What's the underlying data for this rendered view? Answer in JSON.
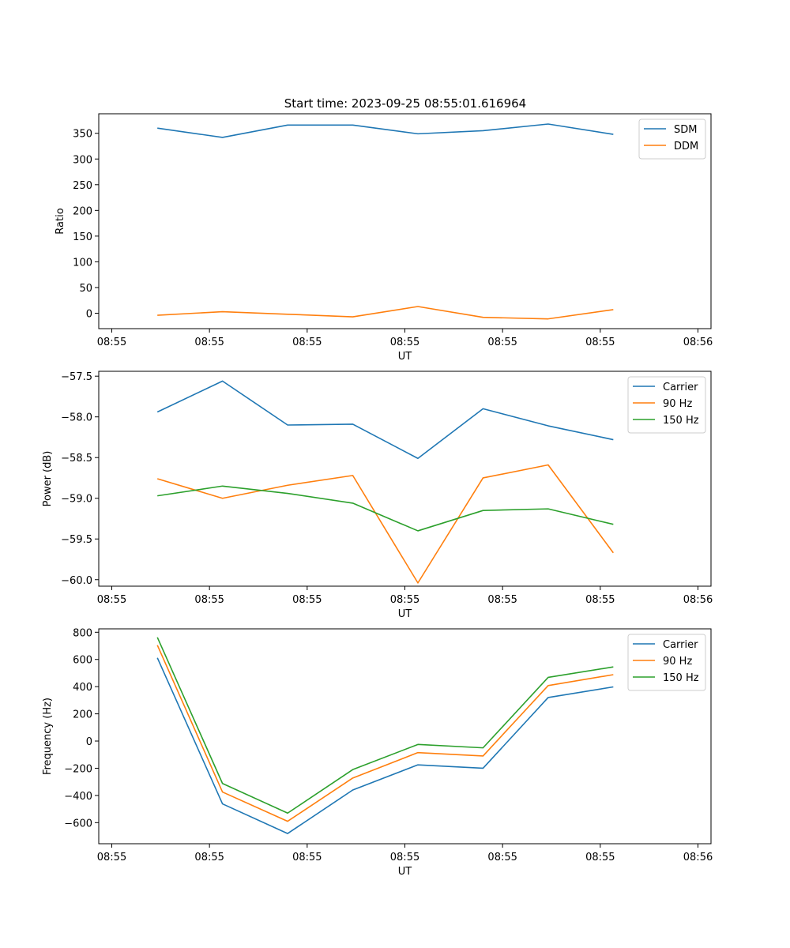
{
  "title": "Start time: 2023-09-25 08:55:01.616964",
  "colors": {
    "blue": "#1f77b4",
    "orange": "#ff7f0e",
    "green": "#2ca02c"
  },
  "chart_data": [
    {
      "type": "line",
      "title": "Start time: 2023-09-25 08:55:01.616964",
      "xlabel": "UT",
      "ylabel": "Ratio",
      "x": [
        0.7,
        1.7,
        2.7,
        3.7,
        4.7,
        5.7,
        6.7,
        7.7
      ],
      "xlim": [
        -0.2,
        9.2
      ],
      "xticks": [
        0,
        1.5,
        3,
        4.5,
        6,
        7.5,
        9
      ],
      "xtick_labels": [
        "08:55",
        "08:55",
        "08:55",
        "08:55",
        "08:55",
        "08:55",
        "08:56"
      ],
      "ylim": [
        -30,
        388
      ],
      "yticks": [
        0,
        50,
        100,
        150,
        200,
        250,
        300,
        350
      ],
      "ytick_labels": [
        "0",
        "50",
        "100",
        "150",
        "200",
        "250",
        "300",
        "350"
      ],
      "legend": "top-right",
      "series": [
        {
          "name": "SDM",
          "color": "#1f77b4",
          "values": [
            360,
            342,
            366,
            366,
            349,
            355,
            368,
            348
          ]
        },
        {
          "name": "DDM",
          "color": "#ff7f0e",
          "values": [
            -4,
            3,
            -2,
            -7,
            13,
            -8,
            -11,
            7
          ]
        }
      ]
    },
    {
      "type": "line",
      "xlabel": "UT",
      "ylabel": "Power (dB)",
      "x": [
        0.7,
        1.7,
        2.7,
        3.7,
        4.7,
        5.7,
        6.7,
        7.7
      ],
      "xlim": [
        -0.2,
        9.2
      ],
      "xticks": [
        0,
        1.5,
        3,
        4.5,
        6,
        7.5,
        9
      ],
      "xtick_labels": [
        "08:55",
        "08:55",
        "08:55",
        "08:55",
        "08:55",
        "08:55",
        "08:56"
      ],
      "ylim": [
        -60.08,
        -57.44
      ],
      "yticks": [
        -60.0,
        -59.5,
        -59.0,
        -58.5,
        -58.0,
        -57.5
      ],
      "ytick_labels": [
        "−60.0",
        "−59.5",
        "−59.0",
        "−58.5",
        "−58.0",
        "−57.5"
      ],
      "legend": "top-right",
      "series": [
        {
          "name": "Carrier",
          "color": "#1f77b4",
          "values": [
            -57.94,
            -57.56,
            -58.1,
            -58.09,
            -58.51,
            -57.9,
            -58.11,
            -58.28
          ]
        },
        {
          "name": "90 Hz",
          "color": "#ff7f0e",
          "values": [
            -58.76,
            -59.0,
            -58.84,
            -58.72,
            -60.04,
            -58.75,
            -58.59,
            -59.67
          ]
        },
        {
          "name": "150 Hz",
          "color": "#2ca02c",
          "values": [
            -58.97,
            -58.85,
            -58.94,
            -59.06,
            -59.4,
            -59.15,
            -59.13,
            -59.32
          ]
        }
      ]
    },
    {
      "type": "line",
      "xlabel": "UT",
      "ylabel": "Frequency (Hz)",
      "x": [
        0.7,
        1.7,
        2.7,
        3.7,
        4.7,
        5.7,
        6.7,
        7.7
      ],
      "xlim": [
        -0.2,
        9.2
      ],
      "xticks": [
        0,
        1.5,
        3,
        4.5,
        6,
        7.5,
        9
      ],
      "xtick_labels": [
        "08:55",
        "08:55",
        "08:55",
        "08:55",
        "08:55",
        "08:55",
        "08:56"
      ],
      "ylim": [
        -755,
        825
      ],
      "yticks": [
        -600,
        -400,
        -200,
        0,
        200,
        400,
        600,
        800
      ],
      "ytick_labels": [
        "−600",
        "−400",
        "−200",
        "0",
        "200",
        "400",
        "600",
        "800"
      ],
      "legend": "top-right",
      "series": [
        {
          "name": "Carrier",
          "color": "#1f77b4",
          "values": [
            612,
            -462,
            -680,
            -360,
            -175,
            -200,
            320,
            398
          ]
        },
        {
          "name": "90 Hz",
          "color": "#ff7f0e",
          "values": [
            705,
            -375,
            -590,
            -272,
            -85,
            -110,
            408,
            488
          ]
        },
        {
          "name": "150 Hz",
          "color": "#2ca02c",
          "values": [
            762,
            -312,
            -530,
            -210,
            -25,
            -50,
            468,
            545
          ]
        }
      ]
    }
  ]
}
